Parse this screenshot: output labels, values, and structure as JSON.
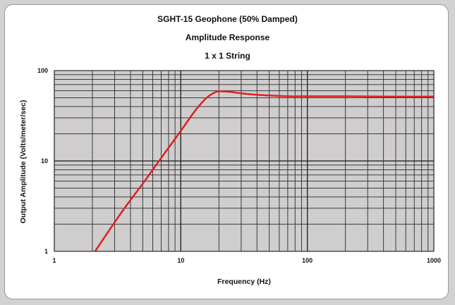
{
  "chart_data": {
    "type": "line",
    "title": "SGHT-15  Geophone (50% Damped)",
    "subtitle": [
      "Amplitude Response",
      "1 x 1 String"
    ],
    "xlabel": "Frequency (Hz)",
    "ylabel": "Output Amplitude (Volts/meter/sec)",
    "xscale": "log",
    "yscale": "log",
    "xlim": [
      1,
      1000
    ],
    "ylim": [
      1,
      100
    ],
    "xticks": [
      "1",
      "10",
      "100",
      "1000"
    ],
    "yticks": [
      "100",
      "10",
      "1"
    ],
    "grid": true,
    "legend": "none",
    "series": [
      {
        "color": "#e02020",
        "x": [
          2.1,
          3,
          4,
          5,
          6,
          7,
          8,
          10,
          12,
          14,
          16,
          18,
          20,
          25,
          30,
          40,
          50,
          70,
          100,
          200,
          500,
          1000
        ],
        "y": [
          1.0,
          2.1,
          3.7,
          5.6,
          8.0,
          10.8,
          14.0,
          21.5,
          31.0,
          41.0,
          50.0,
          56.0,
          59.0,
          58.0,
          56.0,
          54.0,
          53.0,
          52.0,
          52.0,
          52.0,
          51.5,
          51.5
        ]
      }
    ]
  }
}
